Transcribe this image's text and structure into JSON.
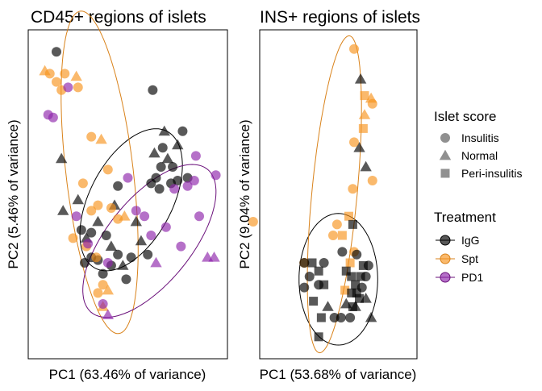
{
  "chart_data": [
    {
      "type": "scatter",
      "title": "CD45+ regions of islets",
      "xlabel": "PC1 (63.46% of variance)",
      "ylabel": "PC2 (5.46% of variance)",
      "xlim": [
        -6,
        6
      ],
      "ylim": [
        -6,
        6
      ],
      "grid": false,
      "ellipses": [
        {
          "group": "IgG",
          "cx": 0.2,
          "cy": -0.2,
          "rx": 3.5,
          "ry": 2.0,
          "angle_deg": 35
        },
        {
          "group": "Spt",
          "cx": -1.7,
          "cy": 0.8,
          "rx": 6.0,
          "ry": 2.0,
          "angle_deg": -78
        },
        {
          "group": "PD1",
          "cx": 1.3,
          "cy": -1.7,
          "rx": 4.5,
          "ry": 1.9,
          "angle_deg": 30
        }
      ],
      "points": [
        {
          "x": -4.3,
          "y": 5.2,
          "shape": "Insulitis",
          "group": "IgG"
        },
        {
          "x": -3.9,
          "y": -0.6,
          "shape": "Normal",
          "group": "IgG"
        },
        {
          "x": -4.0,
          "y": 1.3,
          "shape": "Normal",
          "group": "IgG"
        },
        {
          "x": -3.0,
          "y": -0.2,
          "shape": "Normal",
          "group": "IgG"
        },
        {
          "x": -2.8,
          "y": -1.3,
          "shape": "Insulitis",
          "group": "IgG"
        },
        {
          "x": -2.5,
          "y": -1.6,
          "shape": "Normal",
          "group": "IgG"
        },
        {
          "x": -2.2,
          "y": -1.4,
          "shape": "Insulitis",
          "group": "IgG"
        },
        {
          "x": -2.6,
          "y": -2.5,
          "shape": "Insulitis",
          "group": "IgG"
        },
        {
          "x": -2.2,
          "y": -2.3,
          "shape": "Insulitis",
          "group": "IgG"
        },
        {
          "x": -1.8,
          "y": -2.4,
          "shape": "Insulitis",
          "group": "IgG"
        },
        {
          "x": -1.8,
          "y": -1.0,
          "shape": "Normal",
          "group": "IgG"
        },
        {
          "x": -1.3,
          "y": -1.5,
          "shape": "Insulitis",
          "group": "IgG"
        },
        {
          "x": -1.5,
          "y": -2.9,
          "shape": "Insulitis",
          "group": "IgG"
        },
        {
          "x": -1.0,
          "y": -2.6,
          "shape": "Insulitis",
          "group": "IgG"
        },
        {
          "x": -1.0,
          "y": -1.9,
          "shape": "Normal",
          "group": "IgG"
        },
        {
          "x": -0.6,
          "y": -2.2,
          "shape": "Insulitis",
          "group": "IgG"
        },
        {
          "x": -0.3,
          "y": -2.6,
          "shape": "Normal",
          "group": "IgG"
        },
        {
          "x": -0.1,
          "y": -3.1,
          "shape": "Insulitis",
          "group": "IgG"
        },
        {
          "x": 0.2,
          "y": -2.3,
          "shape": "Insulitis",
          "group": "IgG"
        },
        {
          "x": -0.8,
          "y": -0.4,
          "shape": "Normal",
          "group": "IgG"
        },
        {
          "x": -0.6,
          "y": 0.3,
          "shape": "Insulitis",
          "group": "IgG"
        },
        {
          "x": 0.5,
          "y": -1.0,
          "shape": "Normal",
          "group": "IgG"
        },
        {
          "x": 0.8,
          "y": -1.7,
          "shape": "Normal",
          "group": "IgG"
        },
        {
          "x": 1.2,
          "y": -2.2,
          "shape": "Insulitis",
          "group": "IgG"
        },
        {
          "x": 1.4,
          "y": 0.4,
          "shape": "Insulitis",
          "group": "IgG"
        },
        {
          "x": 1.7,
          "y": 0.6,
          "shape": "Insulitis",
          "group": "IgG"
        },
        {
          "x": 2.0,
          "y": 1.0,
          "shape": "Insulitis",
          "group": "IgG"
        },
        {
          "x": 1.6,
          "y": 1.5,
          "shape": "Normal",
          "group": "IgG"
        },
        {
          "x": 2.1,
          "y": 1.7,
          "shape": "Insulitis",
          "group": "IgG"
        },
        {
          "x": 2.4,
          "y": 1.3,
          "shape": "Normal",
          "group": "IgG"
        },
        {
          "x": 2.7,
          "y": 1.0,
          "shape": "Insulitis",
          "group": "IgG"
        },
        {
          "x": 3.0,
          "y": 1.8,
          "shape": "Normal",
          "group": "IgG"
        },
        {
          "x": 2.2,
          "y": 2.3,
          "shape": "Normal",
          "group": "IgG"
        },
        {
          "x": 3.3,
          "y": 2.3,
          "shape": "Insulitis",
          "group": "IgG"
        },
        {
          "x": 2.6,
          "y": 0.4,
          "shape": "Insulitis",
          "group": "IgG"
        },
        {
          "x": 3.0,
          "y": 0.5,
          "shape": "Insulitis",
          "group": "IgG"
        },
        {
          "x": 3.6,
          "y": 0.6,
          "shape": "Insulitis",
          "group": "IgG"
        },
        {
          "x": 1.9,
          "y": 0.2,
          "shape": "Insulitis",
          "group": "IgG"
        },
        {
          "x": -5.0,
          "y": 4.5,
          "shape": "Normal",
          "group": "Spt"
        },
        {
          "x": -4.7,
          "y": 4.4,
          "shape": "Insulitis",
          "group": "Spt"
        },
        {
          "x": -3.8,
          "y": 4.4,
          "shape": "Insulitis",
          "group": "Spt"
        },
        {
          "x": -4.3,
          "y": 4.1,
          "shape": "Insulitis",
          "group": "Spt"
        },
        {
          "x": -4.0,
          "y": 3.8,
          "shape": "Insulitis",
          "group": "Spt"
        },
        {
          "x": -3.1,
          "y": 4.3,
          "shape": "Normal",
          "group": "Spt"
        },
        {
          "x": -3.0,
          "y": 3.9,
          "shape": "Insulitis",
          "group": "Spt"
        },
        {
          "x": -2.2,
          "y": 2.1,
          "shape": "Insulitis",
          "group": "Spt"
        },
        {
          "x": -2.7,
          "y": 0.4,
          "shape": "Insulitis",
          "group": "Spt"
        },
        {
          "x": -2.2,
          "y": -0.6,
          "shape": "Insulitis",
          "group": "Spt"
        },
        {
          "x": -1.8,
          "y": -0.4,
          "shape": "Insulitis",
          "group": "Spt"
        },
        {
          "x": -1.0,
          "y": -0.5,
          "shape": "Insulitis",
          "group": "Spt"
        },
        {
          "x": -0.6,
          "y": -0.9,
          "shape": "Insulitis",
          "group": "Spt"
        },
        {
          "x": -0.2,
          "y": -0.8,
          "shape": "Normal",
          "group": "Spt"
        },
        {
          "x": -1.2,
          "y": 0.9,
          "shape": "Insulitis",
          "group": "Spt"
        },
        {
          "x": -1.6,
          "y": 2.0,
          "shape": "Normal",
          "group": "Spt"
        },
        {
          "x": -3.3,
          "y": -1.6,
          "shape": "Insulitis",
          "group": "Spt"
        },
        {
          "x": -2.5,
          "y": -1.9,
          "shape": "Insulitis",
          "group": "Spt"
        },
        {
          "x": -1.5,
          "y": -3.3,
          "shape": "Insulitis",
          "group": "Spt"
        },
        {
          "x": -1.2,
          "y": -3.5,
          "shape": "Normal",
          "group": "Spt"
        },
        {
          "x": -1.8,
          "y": -3.6,
          "shape": "Insulitis",
          "group": "Spt"
        },
        {
          "x": -1.5,
          "y": -4.1,
          "shape": "Normal",
          "group": "Spt"
        },
        {
          "x": -1.9,
          "y": -2.3,
          "shape": "Insulitis",
          "group": "Spt"
        },
        {
          "x": -4.8,
          "y": 2.9,
          "shape": "Insulitis",
          "group": "PD1"
        },
        {
          "x": -4.5,
          "y": 2.8,
          "shape": "Insulitis",
          "group": "PD1"
        },
        {
          "x": -3.6,
          "y": 3.9,
          "shape": "Insulitis",
          "group": "PD1"
        },
        {
          "x": -3.1,
          "y": -0.8,
          "shape": "Insulitis",
          "group": "PD1"
        },
        {
          "x": -2.4,
          "y": -1.8,
          "shape": "Insulitis",
          "group": "PD1"
        },
        {
          "x": -1.2,
          "y": -2.5,
          "shape": "Insulitis",
          "group": "PD1"
        },
        {
          "x": -1.5,
          "y": -4.0,
          "shape": "Insulitis",
          "group": "PD1"
        },
        {
          "x": -1.2,
          "y": -4.4,
          "shape": "Normal",
          "group": "PD1"
        },
        {
          "x": 0.0,
          "y": 0.6,
          "shape": "Insulitis",
          "group": "PD1"
        },
        {
          "x": 0.5,
          "y": -0.6,
          "shape": "Insulitis",
          "group": "PD1"
        },
        {
          "x": 1.0,
          "y": -0.8,
          "shape": "Insulitis",
          "group": "PD1"
        },
        {
          "x": 1.4,
          "y": -1.5,
          "shape": "Insulitis",
          "group": "PD1"
        },
        {
          "x": 1.7,
          "y": -2.5,
          "shape": "Normal",
          "group": "PD1"
        },
        {
          "x": 2.3,
          "y": -1.2,
          "shape": "Insulitis",
          "group": "PD1"
        },
        {
          "x": 2.8,
          "y": 0.2,
          "shape": "Insulitis",
          "group": "PD1"
        },
        {
          "x": 3.6,
          "y": 0.3,
          "shape": "Insulitis",
          "group": "PD1"
        },
        {
          "x": 4.0,
          "y": 0.5,
          "shape": "Insulitis",
          "group": "PD1"
        },
        {
          "x": 4.1,
          "y": 1.4,
          "shape": "Insulitis",
          "group": "PD1"
        },
        {
          "x": 4.3,
          "y": -0.8,
          "shape": "Insulitis",
          "group": "PD1"
        },
        {
          "x": 4.8,
          "y": -2.3,
          "shape": "Normal",
          "group": "PD1"
        },
        {
          "x": 5.3,
          "y": 0.7,
          "shape": "Insulitis",
          "group": "PD1"
        },
        {
          "x": 3.2,
          "y": -1.9,
          "shape": "Insulitis",
          "group": "PD1"
        },
        {
          "x": 5.2,
          "y": -2.3,
          "shape": "Normal",
          "group": "PD1"
        },
        {
          "x": 1.5,
          "y": 3.8,
          "shape": "Insulitis",
          "group": "IgG"
        }
      ]
    },
    {
      "type": "scatter",
      "title": "INS+ regions of islets",
      "xlabel": "PC1 (53.68% of variance)",
      "ylabel": "PC2 (9.04% of variance)",
      "xlim": [
        -6,
        6
      ],
      "ylim": [
        -6,
        6
      ],
      "grid": false,
      "ellipses": [
        {
          "group": "IgG",
          "cx": 0.0,
          "cy": -3.1,
          "rx": 3.0,
          "ry": 2.4,
          "angle_deg": 0
        },
        {
          "group": "Spt",
          "cx": -0.3,
          "cy": 0.0,
          "rx": 5.9,
          "ry": 1.7,
          "angle_deg": 78
        }
      ],
      "points": [
        {
          "x": 1.2,
          "y": 5.3,
          "shape": "Insulitis",
          "group": "Spt"
        },
        {
          "x": 1.7,
          "y": 4.2,
          "shape": "Normal",
          "group": "IgG"
        },
        {
          "x": 2.0,
          "y": 3.6,
          "shape": "Peri-insulitis",
          "group": "Spt"
        },
        {
          "x": 2.5,
          "y": 3.5,
          "shape": "Normal",
          "group": "Spt"
        },
        {
          "x": 2.6,
          "y": 3.3,
          "shape": "Insulitis",
          "group": "Spt"
        },
        {
          "x": 2.0,
          "y": 2.9,
          "shape": "Normal",
          "group": "Spt"
        },
        {
          "x": 1.9,
          "y": 2.4,
          "shape": "Peri-insulitis",
          "group": "Spt"
        },
        {
          "x": 1.6,
          "y": 1.7,
          "shape": "Normal",
          "group": "IgG"
        },
        {
          "x": 1.2,
          "y": 1.9,
          "shape": "Insulitis",
          "group": "Spt"
        },
        {
          "x": 2.1,
          "y": 1.0,
          "shape": "Normal",
          "group": "IgG"
        },
        {
          "x": 2.6,
          "y": 0.5,
          "shape": "Insulitis",
          "group": "Spt"
        },
        {
          "x": 1.1,
          "y": 0.2,
          "shape": "Insulitis",
          "group": "Spt"
        },
        {
          "x": 0.8,
          "y": -0.8,
          "shape": "Peri-insulitis",
          "group": "Spt"
        },
        {
          "x": 1.1,
          "y": -1.1,
          "shape": "Peri-insulitis",
          "group": "IgG"
        },
        {
          "x": -0.1,
          "y": -1.1,
          "shape": "Insulitis",
          "group": "Spt"
        },
        {
          "x": 0.3,
          "y": -1.5,
          "shape": "Peri-insulitis",
          "group": "Spt"
        },
        {
          "x": -0.4,
          "y": -1.5,
          "shape": "Insulitis",
          "group": "Spt"
        },
        {
          "x": 1.2,
          "y": -2.1,
          "shape": "Insulitis",
          "group": "Spt"
        },
        {
          "x": 0.9,
          "y": -2.5,
          "shape": "Peri-insulitis",
          "group": "Spt"
        },
        {
          "x": 0.3,
          "y": -2.1,
          "shape": "Insulitis",
          "group": "IgG"
        },
        {
          "x": 1.4,
          "y": -2.2,
          "shape": "Insulitis",
          "group": "IgG"
        },
        {
          "x": 0.5,
          "y": -3.5,
          "shape": "Peri-insulitis",
          "group": "Spt"
        },
        {
          "x": -6.5,
          "y": -1.0,
          "shape": "Insulitis",
          "group": "Spt"
        },
        {
          "x": -2.6,
          "y": -2.5,
          "shape": "Insulitis",
          "group": "Spt"
        },
        {
          "x": -2.6,
          "y": -2.5,
          "shape": "Insulitis",
          "group": "IgG"
        },
        {
          "x": -2.0,
          "y": -2.5,
          "shape": "Peri-insulitis",
          "group": "IgG"
        },
        {
          "x": -1.1,
          "y": -2.5,
          "shape": "Insulitis",
          "group": "IgG"
        },
        {
          "x": -1.5,
          "y": -2.8,
          "shape": "Peri-insulitis",
          "group": "IgG"
        },
        {
          "x": -2.2,
          "y": -3.0,
          "shape": "Insulitis",
          "group": "IgG"
        },
        {
          "x": -1.5,
          "y": -3.3,
          "shape": "Insulitis",
          "group": "IgG"
        },
        {
          "x": -2.6,
          "y": -3.4,
          "shape": "Insulitis",
          "group": "IgG"
        },
        {
          "x": -1.1,
          "y": -3.3,
          "shape": "Peri-insulitis",
          "group": "IgG"
        },
        {
          "x": -1.9,
          "y": -3.9,
          "shape": "Peri-insulitis",
          "group": "IgG"
        },
        {
          "x": -0.8,
          "y": -4.1,
          "shape": "Normal",
          "group": "IgG"
        },
        {
          "x": -1.3,
          "y": -4.5,
          "shape": "Peri-insulitis",
          "group": "IgG"
        },
        {
          "x": -0.3,
          "y": -4.5,
          "shape": "Insulitis",
          "group": "IgG"
        },
        {
          "x": 0.2,
          "y": -4.5,
          "shape": "Insulitis",
          "group": "IgG"
        },
        {
          "x": 0.9,
          "y": -4.5,
          "shape": "Insulitis",
          "group": "IgG"
        },
        {
          "x": 0.6,
          "y": -4.0,
          "shape": "Normal",
          "group": "IgG"
        },
        {
          "x": 0.6,
          "y": -2.8,
          "shape": "Peri-insulitis",
          "group": "IgG"
        },
        {
          "x": 1.0,
          "y": -3.0,
          "shape": "Peri-insulitis",
          "group": "IgG"
        },
        {
          "x": 1.3,
          "y": -3.3,
          "shape": "Peri-insulitis",
          "group": "IgG"
        },
        {
          "x": 1.0,
          "y": -3.6,
          "shape": "Peri-insulitis",
          "group": "IgG"
        },
        {
          "x": 1.4,
          "y": -3.6,
          "shape": "Peri-insulitis",
          "group": "IgG"
        },
        {
          "x": 1.7,
          "y": -3.0,
          "shape": "Peri-insulitis",
          "group": "IgG"
        },
        {
          "x": 1.8,
          "y": -3.4,
          "shape": "Insulitis",
          "group": "IgG"
        },
        {
          "x": 2.1,
          "y": -3.0,
          "shape": "Insulitis",
          "group": "IgG"
        },
        {
          "x": 2.1,
          "y": -3.8,
          "shape": "Normal",
          "group": "IgG"
        },
        {
          "x": 1.3,
          "y": -4.1,
          "shape": "Normal",
          "group": "IgG"
        },
        {
          "x": 2.3,
          "y": -2.6,
          "shape": "Insulitis",
          "group": "IgG"
        },
        {
          "x": 1.9,
          "y": -2.6,
          "shape": "Peri-insulitis",
          "group": "IgG"
        },
        {
          "x": 1.6,
          "y": -3.8,
          "shape": "Peri-insulitis",
          "group": "IgG"
        },
        {
          "x": 1.1,
          "y": -4.1,
          "shape": "Peri-insulitis",
          "group": "IgG"
        },
        {
          "x": -1.5,
          "y": -5.2,
          "shape": "Peri-insulitis",
          "group": "IgG"
        },
        {
          "x": 2.5,
          "y": -4.5,
          "shape": "Normal",
          "group": "IgG"
        }
      ]
    }
  ],
  "legend": {
    "shape_title": "Islet score",
    "shapes": [
      {
        "label": "Insulitis",
        "shape": "circle"
      },
      {
        "label": "Normal",
        "shape": "triangle"
      },
      {
        "label": "Peri-insulitis",
        "shape": "square"
      }
    ],
    "color_title": "Treatment",
    "colors": [
      {
        "label": "IgG",
        "color": "#000000",
        "line_color": "#000000"
      },
      {
        "label": "Spt",
        "color": "#F7941D",
        "line_color": "#D9821A"
      },
      {
        "label": "PD1",
        "color": "#8E24AA",
        "line_color": "#6A0F7A"
      }
    ],
    "position": "right"
  }
}
